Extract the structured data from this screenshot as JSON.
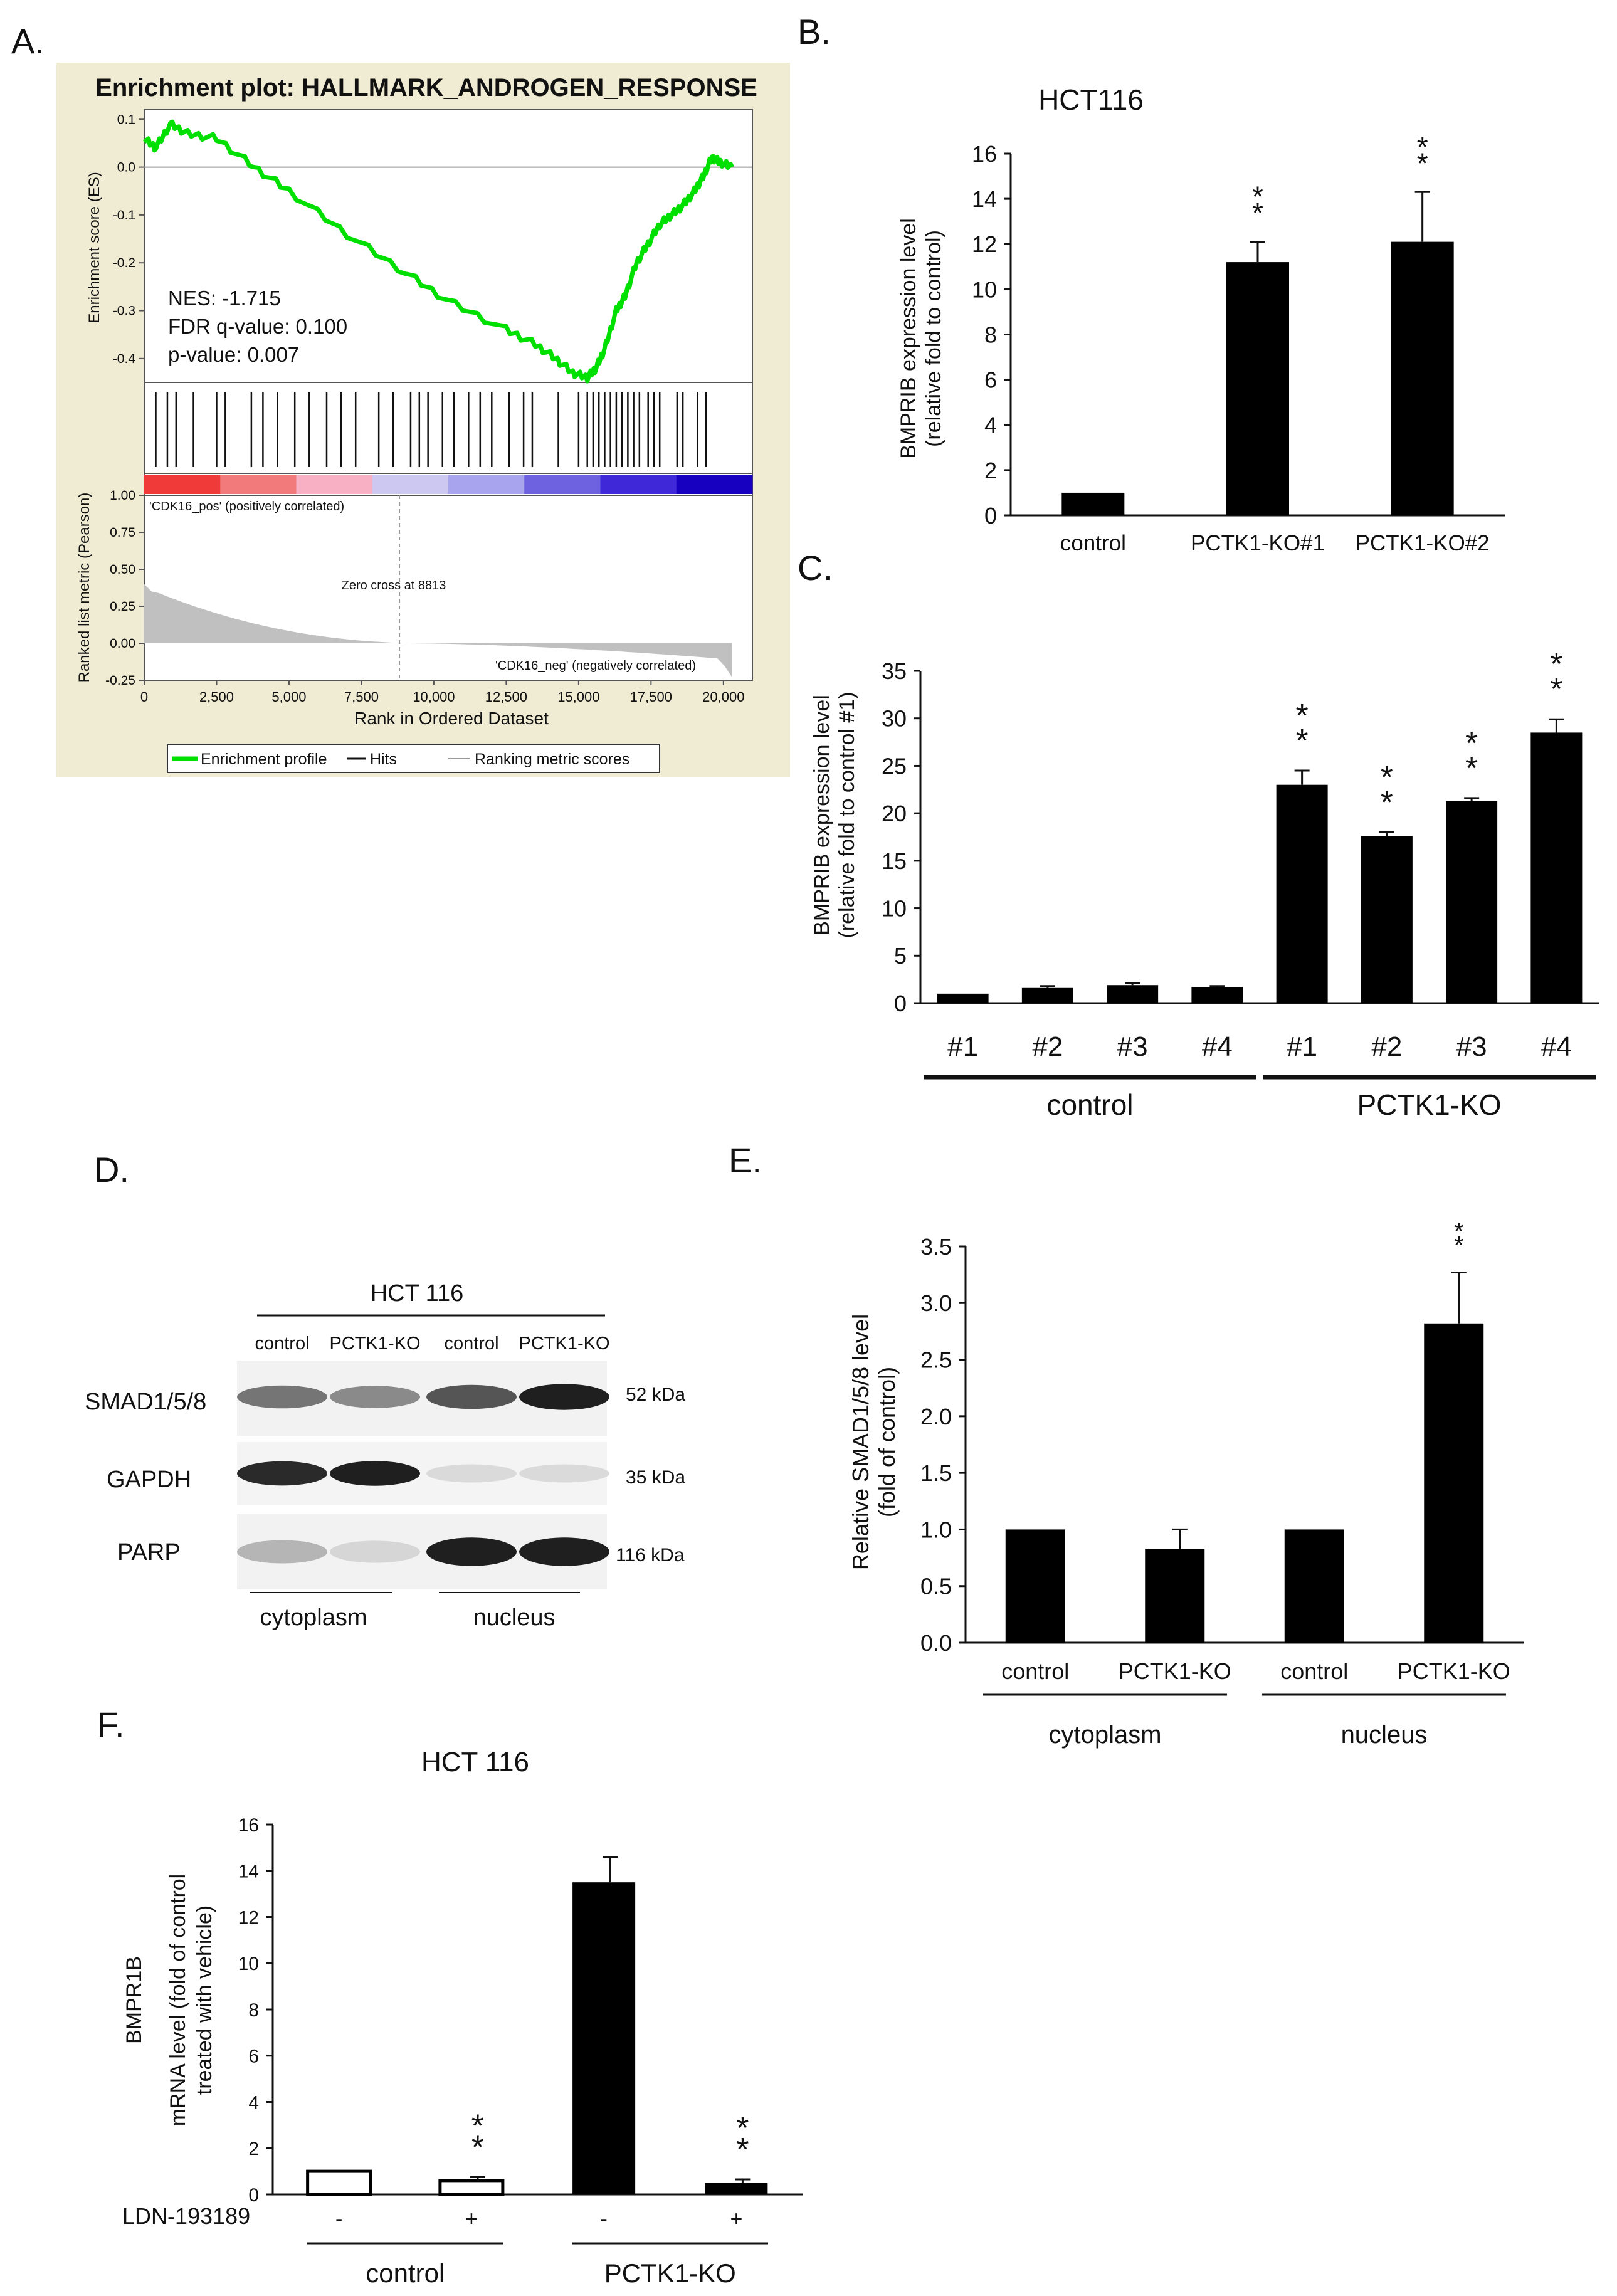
{
  "colors": {
    "gsea_panel_bg": "#f0ecd4",
    "es_line": "#00e000",
    "bar_fill": "#000000",
    "open_bar_fill": "#ffffff",
    "pos_label": "#e02020",
    "neg_label": "#1f2fd0",
    "metric_fill": "#c0c0c0",
    "heat_stops": [
      "#f03a3a",
      "#f27a7a",
      "#f7b0c4",
      "#ccc8f2",
      "#a8a4ee",
      "#6e62e0",
      "#3e28d8",
      "#1800c0"
    ]
  },
  "panel_labels": {
    "A": "A.",
    "B": "B.",
    "C": "C.",
    "D": "D.",
    "E": "E.",
    "F": "F."
  },
  "chart_data": [
    {
      "id": "A",
      "type": "line",
      "title": "Enrichment plot: HALLMARK_ANDROGEN_RESPONSE",
      "ylabel": "Enrichment score (ES)",
      "ylim": [
        -0.45,
        0.12
      ],
      "yticks": [
        "0.1",
        "0.0",
        "-0.1",
        "-0.2",
        "-0.3",
        "-0.4"
      ],
      "es_curve": {
        "x": [
          0,
          400,
          900,
          1500,
          2500,
          3800,
          5000,
          7000,
          9000,
          10500,
          12500,
          13500,
          14200,
          14800,
          15300,
          15600,
          15900,
          16300,
          16600,
          17000,
          17400,
          17800,
          18200,
          18600,
          19000,
          19300,
          19600,
          19900,
          20300
        ],
        "y": [
          0.06,
          0.04,
          0.09,
          0.07,
          0.06,
          0.0,
          -0.05,
          -0.14,
          -0.22,
          -0.28,
          -0.34,
          -0.37,
          -0.4,
          -0.43,
          -0.44,
          -0.42,
          -0.38,
          -0.3,
          -0.27,
          -0.2,
          -0.16,
          -0.12,
          -0.1,
          -0.08,
          -0.05,
          -0.02,
          0.02,
          0.01,
          0.0
        ]
      },
      "stats": {
        "nes": "NES: -1.715",
        "fdr": "FDR q-value: 0.100",
        "pvalue": "p-value: 0.007"
      },
      "hits": [
        400,
        800,
        1100,
        1700,
        2500,
        2800,
        3700,
        4100,
        4600,
        5200,
        5700,
        6300,
        6800,
        7300,
        8100,
        8600,
        9200,
        9500,
        9800,
        10300,
        10700,
        11200,
        11600,
        12000,
        12600,
        13100,
        13400,
        14300,
        15000,
        15300,
        15500,
        15700,
        15900,
        16100,
        16300,
        16500,
        16700,
        16900,
        17100,
        17400,
        17600,
        17800,
        18400,
        18600,
        19100,
        19400
      ],
      "pos_label": "'CDK16_pos' (positively correlated)",
      "neg_label": "'CDK16_neg' (negatively correlated)",
      "zero_cross": "Zero cross at 8813",
      "zero_cross_x": 8813,
      "metric_ylabel": "Ranked list metric (Pearson)",
      "metric_ylim": [
        -0.25,
        1.0
      ],
      "metric_yticks": [
        "1.00",
        "0.75",
        "0.50",
        "0.25",
        "0.00",
        "-0.25"
      ],
      "xlabel": "Rank in Ordered Dataset",
      "xlim": [
        0,
        21000
      ],
      "xticks": [
        "0",
        "2,500",
        "5,000",
        "7,500",
        "10,000",
        "12,500",
        "15,000",
        "17,500",
        "20,000"
      ],
      "legend": [
        "Enrichment profile",
        "Hits",
        "Ranking metric scores"
      ]
    },
    {
      "id": "B",
      "type": "bar",
      "title": "HCT116",
      "ylabel": [
        "BMPRIB expression level",
        "(relative fold to control)"
      ],
      "categories": [
        "control",
        "PCTK1-KO#1",
        "PCTK1-KO#2"
      ],
      "values": [
        1.0,
        11.2,
        12.1
      ],
      "errors": [
        0.0,
        0.9,
        2.2
      ],
      "significance": [
        "",
        "**",
        "**"
      ],
      "ylim": [
        0,
        16
      ],
      "yticks": [
        "0",
        "2",
        "4",
        "6",
        "8",
        "10",
        "12",
        "14",
        "16"
      ]
    },
    {
      "id": "C",
      "type": "bar",
      "ylabel": [
        "BMPRIB expression level",
        "(relative fold to control #1)"
      ],
      "categories": [
        "#1",
        "#2",
        "#3",
        "#4",
        "#1",
        "#2",
        "#3",
        "#4"
      ],
      "values": [
        1.0,
        1.6,
        1.9,
        1.7,
        23.0,
        17.6,
        21.3,
        28.5
      ],
      "errors": [
        0.0,
        0.2,
        0.2,
        0.1,
        1.5,
        0.4,
        0.3,
        1.4
      ],
      "significance": [
        "",
        "",
        "",
        "",
        "**",
        "**",
        "**",
        "**"
      ],
      "groups": [
        "control",
        "PCTK1-KO"
      ],
      "ylim": [
        0,
        35
      ],
      "yticks": [
        "0",
        "5",
        "10",
        "15",
        "20",
        "25",
        "30",
        "35"
      ]
    },
    {
      "id": "E",
      "type": "bar",
      "ylabel": [
        "Relative SMAD1/5/8 level",
        "(fold of control)"
      ],
      "categories": [
        "control",
        "PCTK1-KO",
        "control",
        "PCTK1-KO"
      ],
      "values": [
        1.0,
        0.83,
        1.0,
        2.82
      ],
      "errors": [
        0.0,
        0.17,
        0.0,
        0.45
      ],
      "significance": [
        "",
        "",
        "",
        "**"
      ],
      "groups": [
        "cytoplasm",
        "nucleus"
      ],
      "ylim": [
        0,
        3.5
      ],
      "yticks": [
        "0.0",
        "0.5",
        "1.0",
        "1.5",
        "2.0",
        "2.5",
        "3.0",
        "3.5"
      ]
    },
    {
      "id": "F",
      "type": "bar",
      "title": "HCT 116",
      "ylabel": [
        "BMPR1B",
        "mRNA level (fold of control",
        "treated with vehicle)"
      ],
      "categories": [
        "-",
        "+",
        "-",
        "+"
      ],
      "values": [
        1.0,
        0.6,
        13.5,
        0.5
      ],
      "errors": [
        0.0,
        0.15,
        1.1,
        0.15
      ],
      "open_bars": [
        true,
        true,
        false,
        false
      ],
      "significance": [
        "",
        "**",
        "",
        "**"
      ],
      "treatment_label": "LDN-193189",
      "groups": [
        "control",
        "PCTK1-KO"
      ],
      "ylim": [
        0,
        16
      ],
      "yticks": [
        "0",
        "2",
        "4",
        "6",
        "8",
        "10",
        "12",
        "14",
        "16"
      ]
    }
  ],
  "blot": {
    "title": "HCT 116",
    "lanes": [
      "control",
      "PCTK1-KO",
      "control",
      "PCTK1-KO"
    ],
    "proteins": [
      "SMAD1/5/8",
      "GAPDH",
      "PARP"
    ],
    "sizes": [
      "52 kDa",
      "35 kDa",
      "116 kDa"
    ],
    "fractions": [
      "cytoplasm",
      "nucleus"
    ],
    "intensities": [
      [
        0.55,
        0.45,
        0.7,
        0.95
      ],
      [
        0.9,
        0.95,
        0.08,
        0.08
      ],
      [
        0.25,
        0.1,
        0.95,
        0.95
      ]
    ]
  }
}
